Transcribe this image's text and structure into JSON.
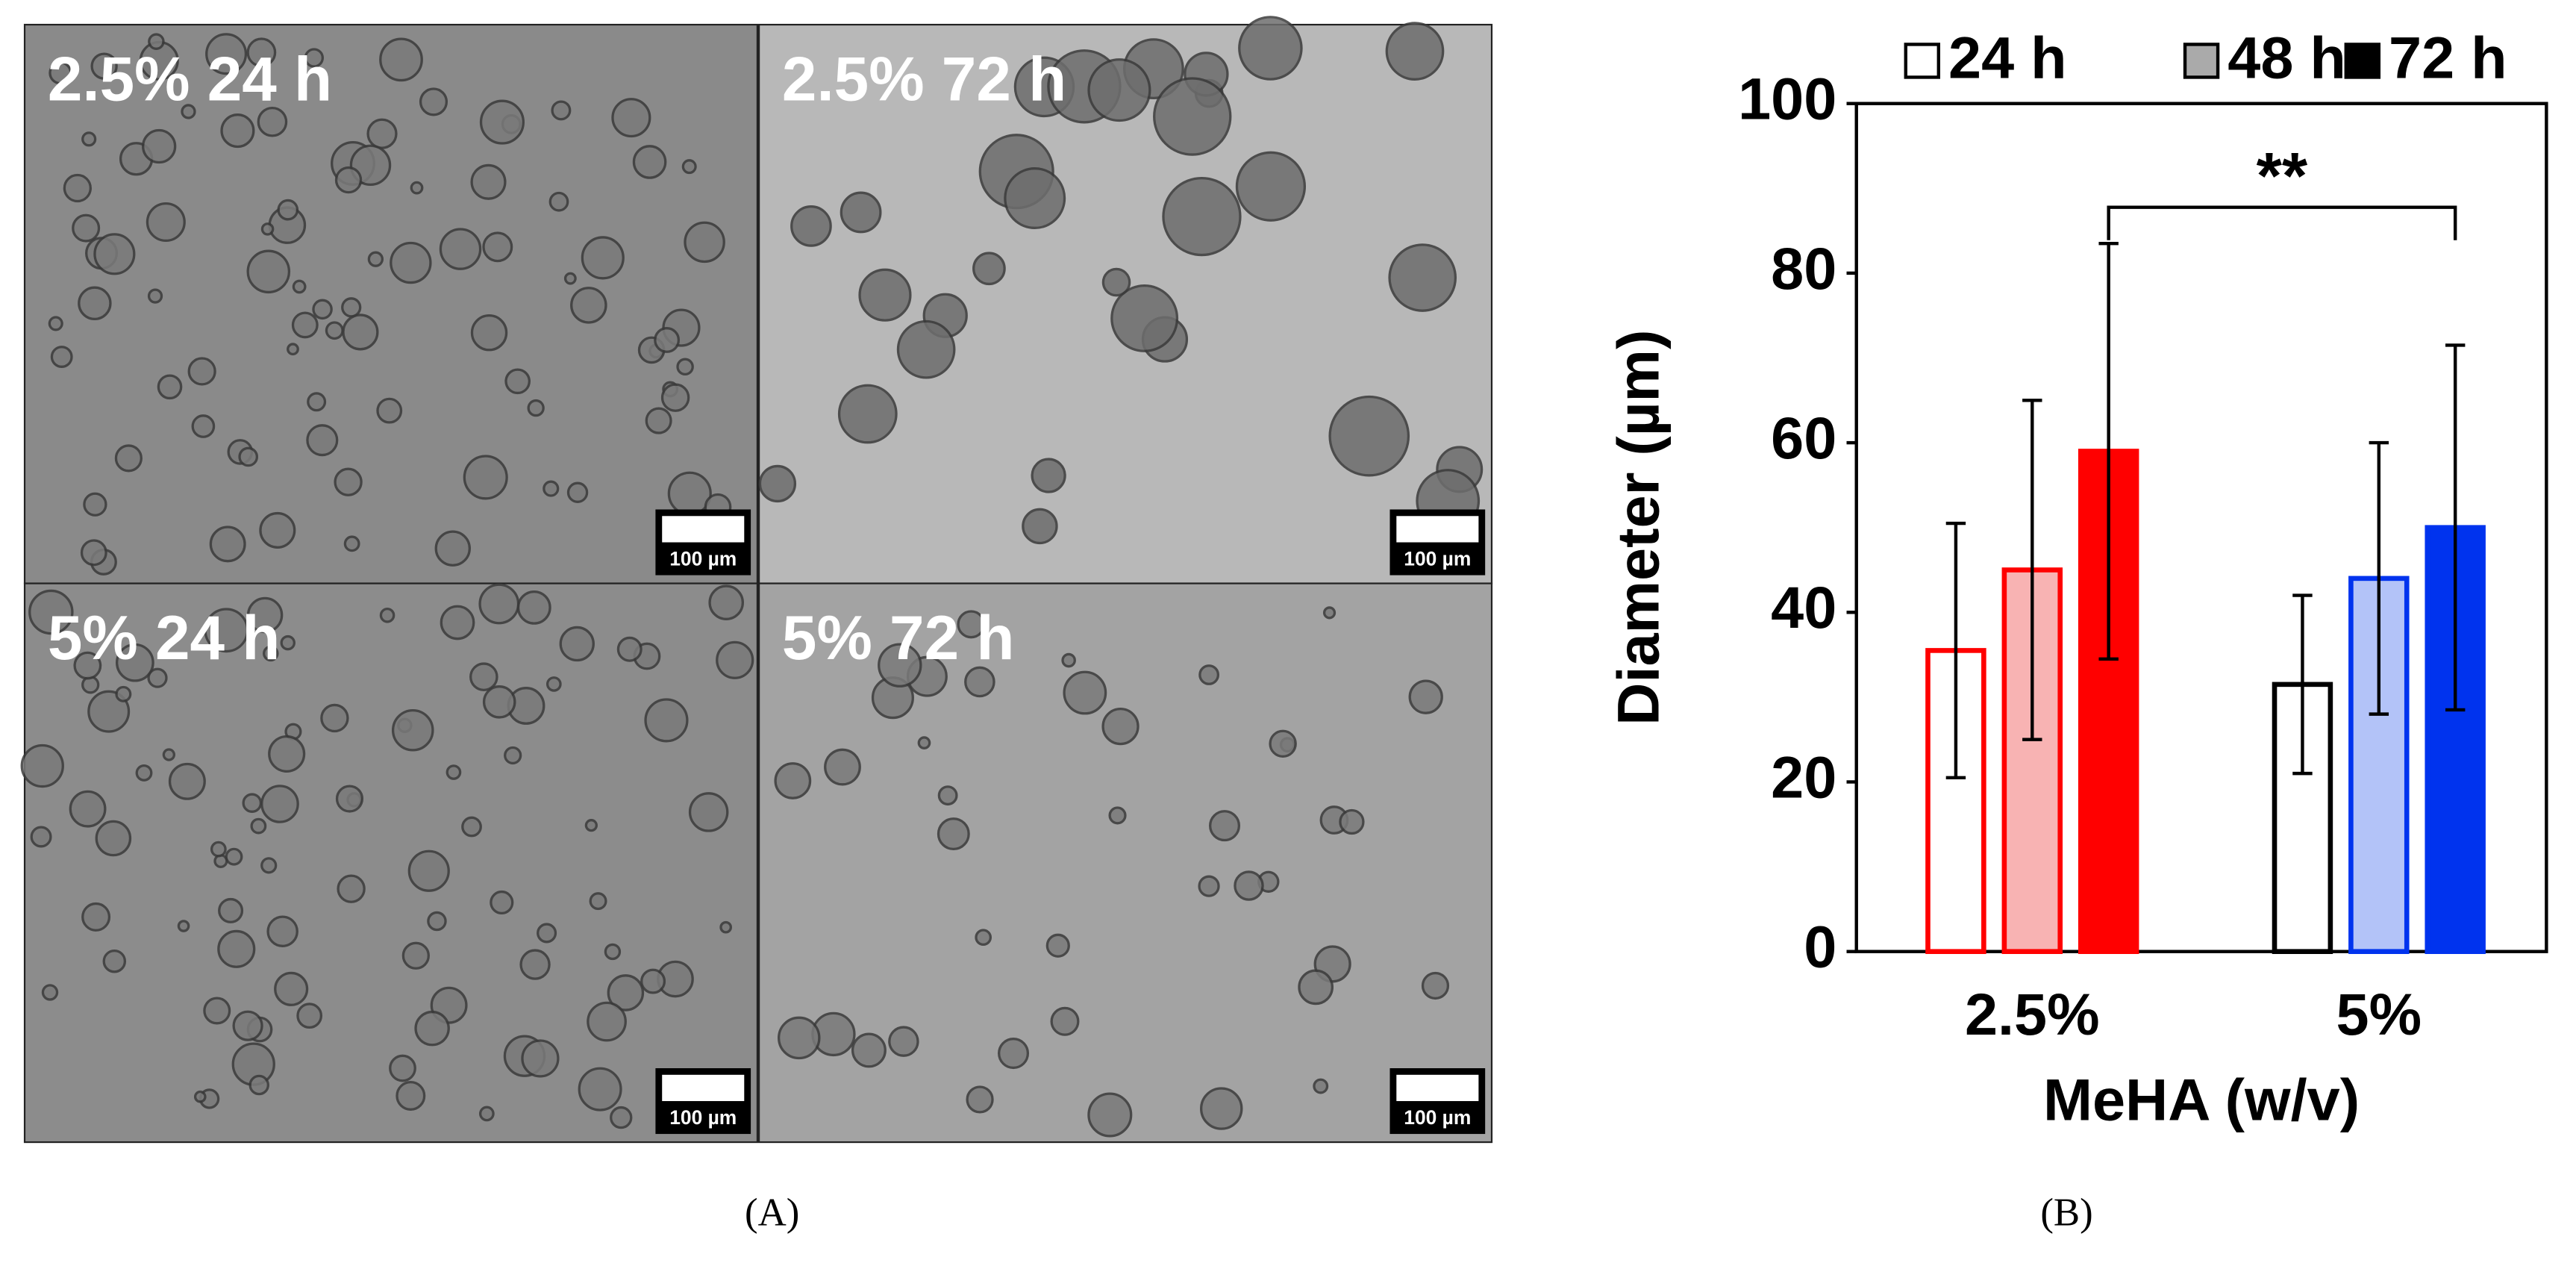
{
  "panels": [
    {
      "label": "2.5% 24 h",
      "scale_bar": "100 µm"
    },
    {
      "label": "2.5% 72 h",
      "scale_bar": "100 µm"
    },
    {
      "label": "5% 24 h",
      "scale_bar": "100 µm"
    },
    {
      "label": "5% 72 h",
      "scale_bar": "100 µm"
    }
  ],
  "captions": [
    "(A)",
    "(B)"
  ],
  "chart_data": {
    "type": "bar",
    "y_label": "Diameter (µm)",
    "x_label": "MeHA (w/v)",
    "categories": [
      "2.5%",
      "5%"
    ],
    "series": [
      {
        "name": "24 h",
        "color": "#ffffff",
        "fills": [
          "#ffffff",
          "#ffffff"
        ],
        "strokes": [
          "#ff0000",
          "#000000"
        ],
        "values": [
          35.5,
          31.5
        ],
        "errors": [
          15,
          10.5
        ]
      },
      {
        "name": "48 h",
        "color": "#aaaaaa",
        "fills": [
          "#f8b3b3",
          "#b3c3f8"
        ],
        "strokes": [
          "#ff0000",
          "#0033ee"
        ],
        "values": [
          45,
          44
        ],
        "errors": [
          20,
          16
        ]
      },
      {
        "name": "72 h",
        "color": "#000000",
        "fills": [
          "#ff0000",
          "#0033ee"
        ],
        "strokes": [
          "#ff0000",
          "#0033ee"
        ],
        "values": [
          59,
          50
        ],
        "errors": [
          24.5,
          21.5
        ]
      }
    ],
    "significance": "**",
    "ylim": [
      0,
      100
    ],
    "yticks": [
      0,
      20,
      40,
      60,
      80,
      100
    ]
  }
}
